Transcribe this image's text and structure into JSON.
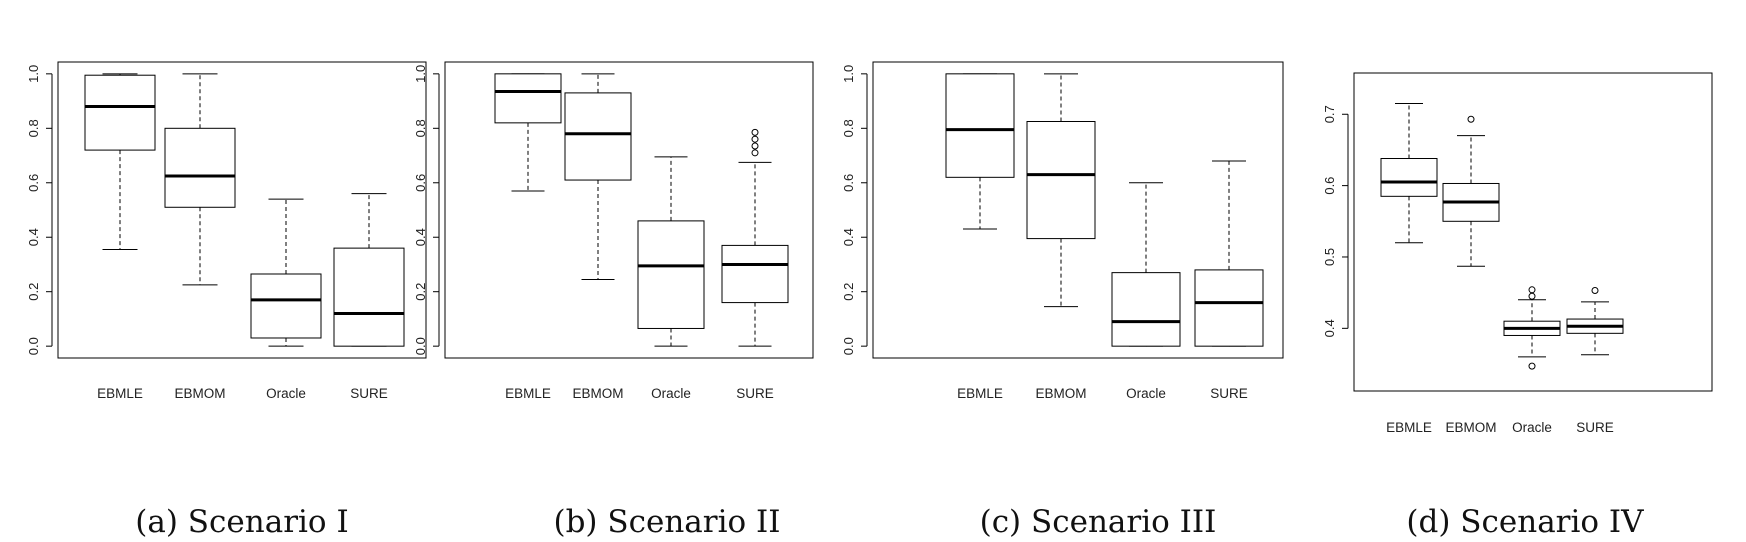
{
  "chart_data": [
    {
      "type": "box",
      "caption": "(a) Scenario I",
      "categories": [
        "EBMLE",
        "EBMOM",
        "Oracle",
        "SURE"
      ],
      "ylim": [
        0,
        1
      ],
      "yticks": [
        "0.0",
        "0.2",
        "0.4",
        "0.6",
        "0.8",
        "1.0"
      ],
      "boxes": [
        {
          "whisker_low": 0.355,
          "q1": 0.72,
          "median": 0.88,
          "q3": 0.995,
          "whisker_high": 1.0,
          "outliers": []
        },
        {
          "whisker_low": 0.225,
          "q1": 0.51,
          "median": 0.625,
          "q3": 0.8,
          "whisker_high": 1.0,
          "outliers": []
        },
        {
          "whisker_low": 0.0,
          "q1": 0.03,
          "median": 0.17,
          "q3": 0.265,
          "whisker_high": 0.54,
          "outliers": []
        },
        {
          "whisker_low": 0.0,
          "q1": 0.0,
          "median": 0.12,
          "q3": 0.36,
          "whisker_high": 0.56,
          "outliers": []
        }
      ]
    },
    {
      "type": "box",
      "caption": "(b) Scenario II",
      "categories": [
        "EBMLE",
        "EBMOM",
        "Oracle",
        "SURE"
      ],
      "ylim": [
        0,
        1
      ],
      "yticks": [
        "0.0",
        "0.2",
        "0.4",
        "0.6",
        "0.8",
        "1.0"
      ],
      "boxes": [
        {
          "whisker_low": 0.57,
          "q1": 0.82,
          "median": 0.935,
          "q3": 1.0,
          "whisker_high": 1.0,
          "outliers": []
        },
        {
          "whisker_low": 0.245,
          "q1": 0.61,
          "median": 0.78,
          "q3": 0.93,
          "whisker_high": 1.0,
          "outliers": []
        },
        {
          "whisker_low": 0.0,
          "q1": 0.065,
          "median": 0.295,
          "q3": 0.46,
          "whisker_high": 0.695,
          "outliers": []
        },
        {
          "whisker_low": 0.0,
          "q1": 0.16,
          "median": 0.3,
          "q3": 0.37,
          "whisker_high": 0.675,
          "outliers": [
            0.71,
            0.735,
            0.76,
            0.785
          ]
        }
      ]
    },
    {
      "type": "box",
      "caption": "(c) Scenario III",
      "categories": [
        "EBMLE",
        "EBMOM",
        "Oracle",
        "SURE"
      ],
      "ylim": [
        0,
        1
      ],
      "yticks": [
        "0.0",
        "0.2",
        "0.4",
        "0.6",
        "0.8",
        "1.0"
      ],
      "boxes": [
        {
          "whisker_low": 0.43,
          "q1": 0.62,
          "median": 0.795,
          "q3": 1.0,
          "whisker_high": 1.0,
          "outliers": []
        },
        {
          "whisker_low": 0.145,
          "q1": 0.395,
          "median": 0.63,
          "q3": 0.825,
          "whisker_high": 1.0,
          "outliers": []
        },
        {
          "whisker_low": 0.0,
          "q1": 0.0,
          "median": 0.09,
          "q3": 0.27,
          "whisker_high": 0.6,
          "outliers": []
        },
        {
          "whisker_low": 0.0,
          "q1": 0.0,
          "median": 0.16,
          "q3": 0.28,
          "whisker_high": 0.68,
          "outliers": []
        }
      ]
    },
    {
      "type": "box",
      "caption": "(d) Scenario IV",
      "categories": [
        "EBMLE",
        "EBMOM",
        "Oracle",
        "SURE"
      ],
      "ylim": [
        0.33,
        0.74
      ],
      "yticks": [
        "0.4",
        "0.5",
        "0.6",
        "0.7"
      ],
      "boxes": [
        {
          "whisker_low": 0.52,
          "q1": 0.585,
          "median": 0.605,
          "q3": 0.638,
          "whisker_high": 0.715,
          "outliers": []
        },
        {
          "whisker_low": 0.487,
          "q1": 0.55,
          "median": 0.577,
          "q3": 0.603,
          "whisker_high": 0.67,
          "outliers": [
            0.693
          ]
        },
        {
          "whisker_low": 0.36,
          "q1": 0.39,
          "median": 0.4,
          "q3": 0.41,
          "whisker_high": 0.44,
          "outliers": [
            0.347,
            0.445,
            0.454
          ]
        },
        {
          "whisker_low": 0.363,
          "q1": 0.393,
          "median": 0.403,
          "q3": 0.413,
          "whisker_high": 0.437,
          "outliers": [
            0.453
          ]
        }
      ]
    }
  ]
}
